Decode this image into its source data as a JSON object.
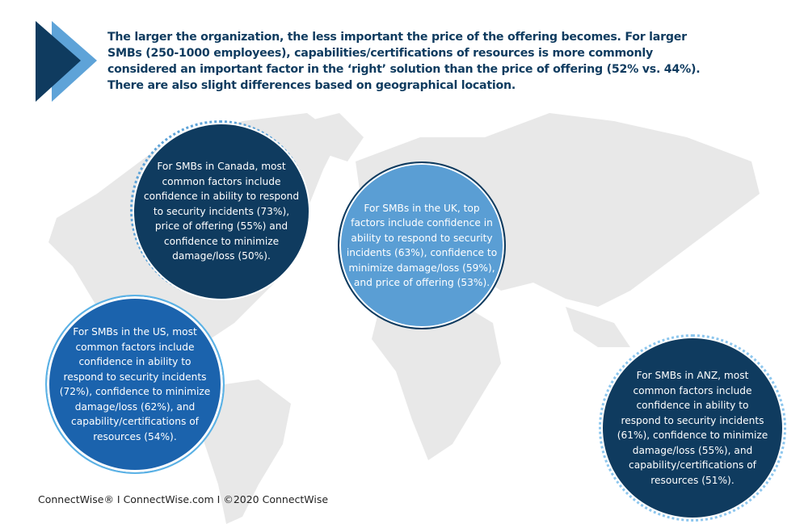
{
  "headline": "The larger the organization, the less important the price of the offering becomes. For larger SMBs (250-1000 employees), capabilities/certifications of resources is more commonly considered an important factor in the ‘right’ solution than the price of offering (52% vs. 44%). There are also slight differences based on geographical location.",
  "regions": {
    "canada": [
      "For SMBs in Canada, most",
      "common factors include",
      "confidence in ability to respond",
      "to security incidents (73%),",
      "price of offering (55%) and",
      "confidence to minimize",
      "damage/loss (50%)."
    ],
    "uk": [
      "For SMBs in the UK, top",
      "factors include confidence in",
      "ability to respond to security",
      "incidents (63%), confidence to",
      "minimize damage/loss (59%),",
      "and price of offering (53%)."
    ],
    "us": [
      "For SMBs in the US, most",
      "common factors include",
      "confidence in ability to",
      "respond to security incidents",
      "(72%), confidence to minimize",
      "damage/loss (62%), and",
      "capability/certifications of",
      "resources (54%)."
    ],
    "anz": [
      "For SMBs in ANZ, most",
      "common factors include",
      "confidence in ability to",
      "respond to security incidents",
      "(61%), confidence to minimize",
      "damage/loss (55%), and",
      "capability/certifications of",
      "resources (51%)."
    ]
  },
  "footer": "ConnectWise® I ConnectWise.com I ©2020 ConnectWise",
  "colors": {
    "navy": "#0f3b5f",
    "light_blue": "#5a9ed4",
    "blue": "#1b63ad",
    "map_gray": "#e6e6e6"
  },
  "icons": {
    "chevron": "double-chevron-right-icon",
    "background": "world-map"
  }
}
